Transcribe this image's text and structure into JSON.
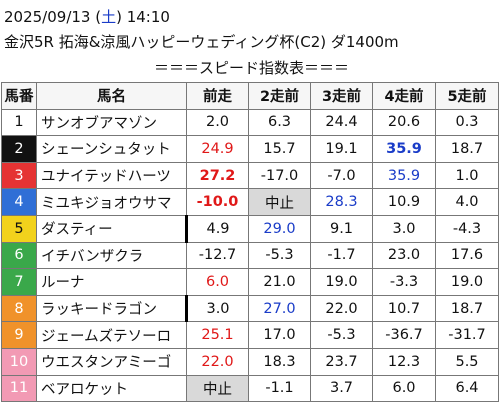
{
  "header": {
    "date": "2025/09/13 (",
    "weekday": "土",
    "time": ") 14:10",
    "race": "金沢5R 拓海&涼風ハッピーウェディング杯(C2) ダ1400m",
    "subtitle": "＝＝＝スピード指数表＝＝＝"
  },
  "table": {
    "columns": [
      "馬番",
      "馬名",
      "前走",
      "2走前",
      "3走前",
      "4走前",
      "5走前"
    ],
    "rows": [
      [
        "1",
        "サンオブアマゾン",
        "2.0",
        "6.3",
        "24.4",
        "20.6",
        "0.3"
      ],
      [
        "2",
        "シェーンシュタット",
        "24.9",
        "15.7",
        "19.1",
        "35.9",
        "18.7"
      ],
      [
        "3",
        "ユナイテッドハーツ",
        "27.2",
        "-17.0",
        "-7.0",
        "35.9",
        "1.0"
      ],
      [
        "4",
        "ミユキジョオウサマ",
        "-10.0",
        "中止",
        "28.3",
        "10.9",
        "4.0"
      ],
      [
        "5",
        "ダスティー",
        "4.9",
        "29.0",
        "9.1",
        "3.0",
        "-4.3"
      ],
      [
        "6",
        "イチバンザクラ",
        "-12.7",
        "-5.3",
        "-1.7",
        "23.0",
        "17.6"
      ],
      [
        "7",
        "ルーナ",
        "6.0",
        "21.0",
        "19.0",
        "-3.3",
        "19.0"
      ],
      [
        "8",
        "ラッキードラゴン",
        "3.0",
        "27.0",
        "22.0",
        "10.7",
        "18.7"
      ],
      [
        "9",
        "ジェームズテソーロ",
        "25.1",
        "17.0",
        "-5.3",
        "-36.7",
        "-31.7"
      ],
      [
        "10",
        "ウエスタンアミーゴ",
        "22.0",
        "18.3",
        "23.7",
        "12.3",
        "5.5"
      ],
      [
        "11",
        "ベアロケット",
        "中止",
        "-1.1",
        "3.7",
        "6.0",
        "6.4"
      ]
    ]
  }
}
